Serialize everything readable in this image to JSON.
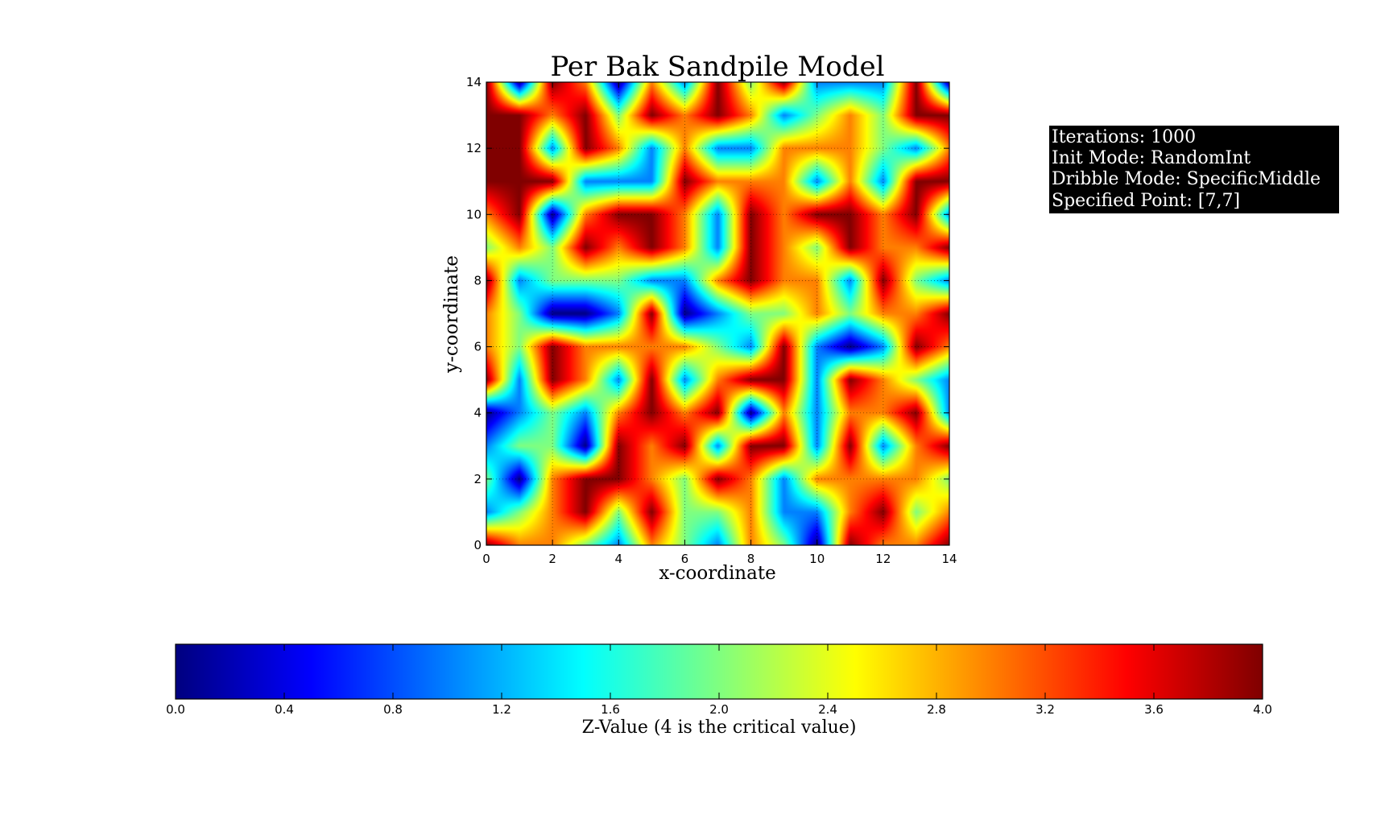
{
  "chart_data": {
    "type": "heatmap",
    "title": "Per Bak Sandpile Model",
    "xlabel": "x-coordinate",
    "ylabel": "y-coordinate",
    "xlim": [
      0,
      14
    ],
    "ylim": [
      0,
      14
    ],
    "xticks": [
      "0",
      "2",
      "4",
      "6",
      "8",
      "10",
      "12",
      "14"
    ],
    "yticks": [
      "0",
      "2",
      "4",
      "6",
      "8",
      "10",
      "12",
      "14"
    ],
    "grid": true,
    "colormap": "jet",
    "zlim": [
      0,
      4
    ],
    "interpolation": "bilinear",
    "z": [
      [
        4,
        3,
        3,
        2,
        1,
        3,
        2,
        1,
        3,
        2,
        0,
        4,
        3,
        3,
        4
      ],
      [
        1,
        2,
        3,
        4,
        2,
        4,
        2,
        2,
        3,
        1,
        1,
        3,
        4,
        2,
        3
      ],
      [
        2,
        0,
        3,
        4,
        4,
        3,
        2,
        4,
        3,
        1,
        3,
        3,
        3,
        3,
        2
      ],
      [
        1,
        2,
        2,
        0,
        4,
        3,
        4,
        1,
        4,
        4,
        1,
        4,
        1,
        3,
        4
      ],
      [
        0,
        1,
        2,
        1,
        3,
        4,
        3,
        4,
        0,
        3,
        1,
        3,
        3,
        4,
        1
      ],
      [
        4,
        1,
        4,
        3,
        1,
        4,
        1,
        3,
        4,
        4,
        1,
        4,
        3,
        2,
        1
      ],
      [
        3,
        2,
        4,
        3,
        3,
        3,
        3,
        2,
        1,
        4,
        1,
        0,
        1,
        4,
        3
      ],
      [
        3,
        2,
        0,
        0,
        1,
        4,
        0,
        1,
        2,
        2,
        3,
        2,
        3,
        3,
        4
      ],
      [
        4,
        1,
        2,
        2,
        2,
        1,
        1,
        3,
        4,
        3,
        3,
        1,
        4,
        2,
        1
      ],
      [
        2,
        3,
        2,
        4,
        3,
        4,
        3,
        1,
        4,
        3,
        2,
        4,
        3,
        3,
        4
      ],
      [
        3,
        4,
        0,
        3,
        4,
        4,
        3,
        1,
        4,
        3,
        4,
        4,
        3,
        4,
        1
      ],
      [
        4,
        4,
        4,
        1,
        1,
        1,
        4,
        3,
        3,
        3,
        1,
        3,
        1,
        4,
        4
      ],
      [
        4,
        4,
        1,
        4,
        3,
        1,
        3,
        1,
        1,
        3,
        3,
        3,
        2,
        1,
        3
      ],
      [
        4,
        4,
        3,
        4,
        2,
        4,
        3,
        4,
        3,
        1,
        2,
        3,
        2,
        4,
        4
      ],
      [
        4,
        0,
        4,
        3,
        0,
        3,
        1,
        4,
        2,
        4,
        1,
        1,
        1,
        4,
        0
      ]
    ],
    "info_box": [
      "Iterations: 1000",
      "Init Mode: RandomInt",
      "Dribble Mode: SpecificMiddle",
      "Specified Point: [7,7]"
    ],
    "colorbar": {
      "label": "Z-Value (4 is the critical value)",
      "ticks": [
        "0.0",
        "0.4",
        "0.8",
        "1.2",
        "1.6",
        "2.0",
        "2.4",
        "2.8",
        "3.2",
        "3.6",
        "4.0"
      ]
    }
  }
}
